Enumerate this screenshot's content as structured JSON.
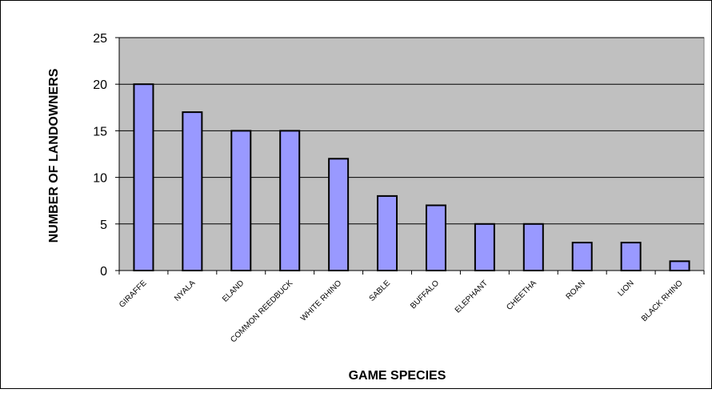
{
  "chart_data": {
    "type": "bar",
    "title": "",
    "xlabel": "GAME SPECIES",
    "ylabel": "NUMBER OF LANDOWNERS",
    "categories": [
      "GIRAFFE",
      "NYALA",
      "ELAND",
      "COMMON REEDBUCK",
      "WHITE RHINO",
      "SABLE",
      "BUFFALO",
      "ELEPHANT",
      "CHEETHA",
      "ROAN",
      "LION",
      "BLACK RHINO"
    ],
    "values": [
      20,
      17,
      15,
      15,
      12,
      8,
      7,
      5,
      5,
      3,
      3,
      1
    ],
    "ylim": [
      0,
      25
    ],
    "yticks": [
      0,
      5,
      10,
      15,
      20,
      25
    ],
    "grid": true,
    "legend": "none",
    "colors": {
      "bar_fill": "#9999FF",
      "bar_stroke": "#000000",
      "plot_background": "#C0C0C0",
      "gridline": "#000000",
      "text": "#000000"
    }
  }
}
